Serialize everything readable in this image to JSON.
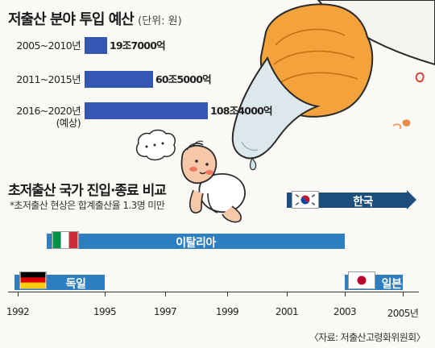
{
  "chart_data": [
    {
      "type": "bar",
      "orientation": "horizontal",
      "title": "저출산 분야 투입 예산",
      "unit": "(단위: 원)",
      "categories": [
        "2005~2010년",
        "2011~2015년",
        "2016~2020년"
      ],
      "category_sublabels": [
        "",
        "",
        "(예상)"
      ],
      "values": [
        19.7,
        60.5,
        108.4
      ],
      "value_labels": [
        "19조7000억",
        "60조5000억",
        "108조4000억"
      ],
      "color": "#3556b2",
      "xlim": [
        0,
        108.4
      ],
      "grid": false
    },
    {
      "type": "bar",
      "orientation": "horizontal-range",
      "title": "초저출산 국가 진입·종료 비교",
      "note": "*초저출산 현상은 합계출산율 1.3명 미만",
      "xlim": [
        1992,
        2005.5
      ],
      "ticks": [
        1992,
        1995,
        1997,
        1999,
        2001,
        2003,
        2005
      ],
      "tick_labels": [
        "1992",
        "1995",
        "1997",
        "1999",
        "2001",
        "2003",
        "2005년"
      ],
      "series": [
        {
          "name": "한국",
          "flag": "korea-flag",
          "start": 2001,
          "end": 2005.5,
          "ongoing": true,
          "color": "#1d4f7d"
        },
        {
          "name": "이탈리아",
          "flag": "italy-flag",
          "start": 1993,
          "end": 2003,
          "ongoing": false,
          "color": "#2e7fc2"
        },
        {
          "name": "독일",
          "flag": "germany-flag",
          "start": 1992,
          "end": 1995,
          "ongoing": false,
          "color": "#2e7fc2"
        },
        {
          "name": "일본",
          "flag": "japan-flag",
          "start": 2003,
          "end": 2005,
          "ongoing": false,
          "color": "#2e7fc2"
        }
      ],
      "grid": false,
      "legend": "none"
    }
  ],
  "source": "〈자료: 저출산고령화위원회〉",
  "illustration": {
    "icons": [
      "baby-bottle-icon",
      "crawling-baby-icon",
      "thought-bubble-icon"
    ],
    "bottle_nipple_color": "#dde8ec",
    "bottle_cap_color": "#f3a23c",
    "baby_skin_color": "#f6c7a9",
    "baby_cheek_color": "#ef7a5b"
  }
}
